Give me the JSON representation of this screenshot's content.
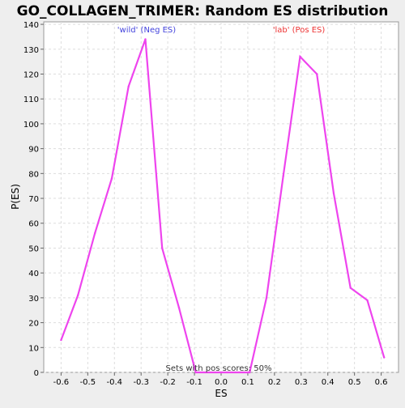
{
  "chart_data": {
    "type": "line",
    "title": "GO_COLLAGEN_TRIMER: Random ES distribution",
    "xlabel": "ES",
    "ylabel": "P(ES)",
    "xlim": [
      -0.665,
      0.665
    ],
    "ylim": [
      0,
      141
    ],
    "x_ticks": [
      "-0.6",
      "-0.5",
      "-0.4",
      "-0.3",
      "-0.2",
      "-0.1",
      "0.0",
      "0.1",
      "0.2",
      "0.3",
      "0.4",
      "0.5",
      "0.6"
    ],
    "x_tick_values": [
      -0.6,
      -0.5,
      -0.4,
      -0.3,
      -0.2,
      -0.1,
      0.0,
      0.1,
      0.2,
      0.3,
      0.4,
      0.5,
      0.6
    ],
    "y_ticks": [
      0,
      10,
      20,
      30,
      40,
      50,
      60,
      70,
      80,
      90,
      100,
      110,
      120,
      130,
      140
    ],
    "grid": true,
    "series": [
      {
        "color": "#ee44ee",
        "x": [
          -0.6,
          -0.537,
          -0.473,
          -0.41,
          -0.347,
          -0.284,
          -0.221,
          -0.158,
          -0.095,
          0.0,
          0.107,
          0.17,
          0.233,
          0.296,
          0.359,
          0.422,
          0.485,
          0.548,
          0.611
        ],
        "y": [
          13,
          31,
          56,
          78,
          115,
          134,
          50,
          26,
          0,
          0,
          0,
          30,
          79,
          127,
          120,
          72,
          34,
          29,
          6
        ]
      }
    ],
    "annotations": {
      "neg_label": "'wild' (Neg ES)",
      "pos_label": "'lab' (Pos ES)",
      "neg_color": "#4444dd",
      "pos_color": "#ee3333",
      "footer": "Sets with pos scores: 50%"
    }
  }
}
